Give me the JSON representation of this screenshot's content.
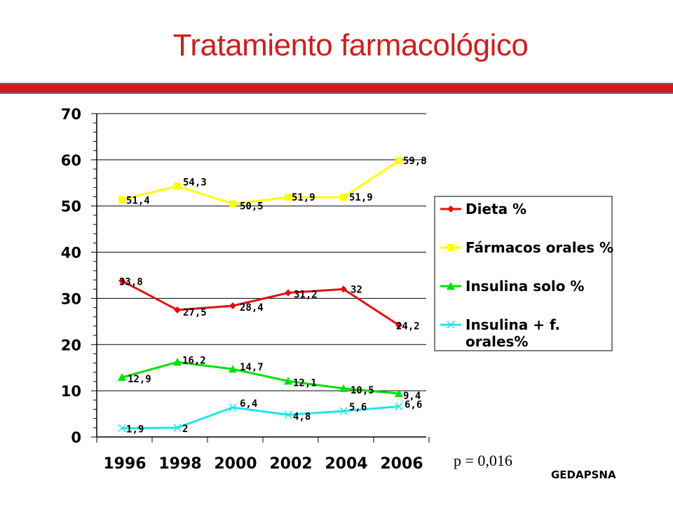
{
  "page": {
    "title": "Tratamiento farmacológico",
    "pvalue": "p = 0,016",
    "credit": "GEDAPSNA"
  },
  "colors": {
    "title": "#cc1f1f",
    "bar": "#d01919",
    "bar_border": "#5b6fa8"
  },
  "chart_data": {
    "type": "line",
    "x": [
      "1996",
      "1998",
      "2000",
      "2002",
      "2004",
      "2006"
    ],
    "ylim": [
      0,
      70
    ],
    "yticks": [
      0,
      10,
      20,
      30,
      40,
      50,
      60,
      70
    ],
    "grid": true,
    "legend_position": "right",
    "series": [
      {
        "name": "Dieta %",
        "color": "#e01010",
        "marker": "diamond",
        "values": [
          33.8,
          27.5,
          28.4,
          31.2,
          32,
          24.2
        ],
        "labels": [
          "33,8",
          "27,5",
          "28,4",
          "31,2",
          "32",
          "24,2"
        ]
      },
      {
        "name": "Fármacos orales %",
        "color": "#ffff00",
        "marker": "square",
        "values": [
          51.4,
          54.3,
          50.5,
          51.9,
          51.9,
          59.8
        ],
        "labels": [
          "51,4",
          "54,3",
          "50,5",
          "51,9",
          "51,9",
          "59,8"
        ]
      },
      {
        "name": "Insulina  solo %",
        "color": "#00e000",
        "marker": "triangle",
        "values": [
          12.9,
          16.2,
          14.7,
          12.1,
          10.5,
          9.4
        ],
        "labels": [
          "12,9",
          "16,2",
          "14,7",
          "12,1",
          "10,5",
          "9,4"
        ]
      },
      {
        "name": "Insulina + f. orales%",
        "legend_lines": [
          "Insulina + f.",
          "orales%"
        ],
        "color": "#1ee4f0",
        "marker": "x",
        "values": [
          1.9,
          2,
          6.4,
          4.8,
          5.6,
          6.6
        ],
        "labels": [
          "1,9",
          "2",
          "6,4",
          "4,8",
          "5,6",
          "6,6"
        ]
      }
    ]
  }
}
